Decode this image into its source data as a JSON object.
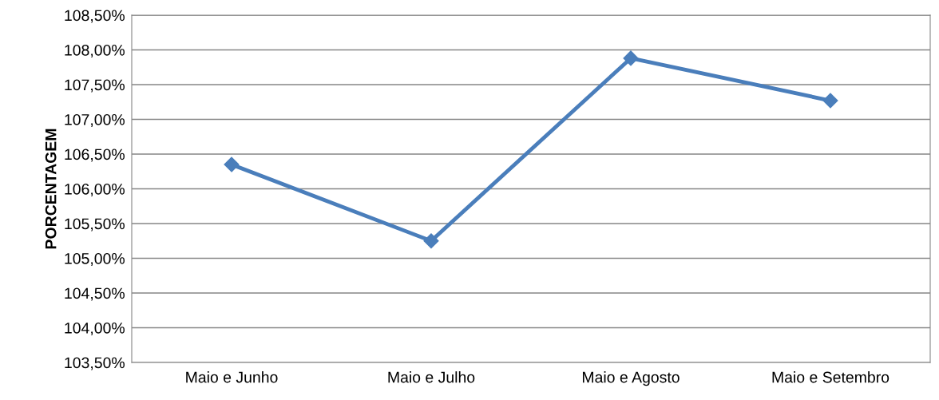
{
  "chart_data": {
    "type": "line",
    "ylabel": "PORCENTAGEM",
    "categories": [
      "Maio e Junho",
      "Maio e Julho",
      "Maio e Agosto",
      "Maio e Setembro"
    ],
    "series": [
      {
        "color": "#4a7ebb",
        "values": [
          106.35,
          105.25,
          107.88,
          107.27
        ]
      }
    ],
    "ylim": [
      103.5,
      108.5
    ],
    "yticks": [
      {
        "value": 103.5,
        "label": "103,50%"
      },
      {
        "value": 104.0,
        "label": "104,00%"
      },
      {
        "value": 104.5,
        "label": "104,50%"
      },
      {
        "value": 105.0,
        "label": "105,00%"
      },
      {
        "value": 105.5,
        "label": "105,50%"
      },
      {
        "value": 106.0,
        "label": "106,00%"
      },
      {
        "value": 106.5,
        "label": "106,50%"
      },
      {
        "value": 107.0,
        "label": "107,00%"
      },
      {
        "value": 107.5,
        "label": "107,50%"
      },
      {
        "value": 108.0,
        "label": "108,00%"
      },
      {
        "value": 108.5,
        "label": "108,50%"
      }
    ],
    "grid": "y",
    "marker": "diamond",
    "line_style": "solid",
    "legend": false
  }
}
